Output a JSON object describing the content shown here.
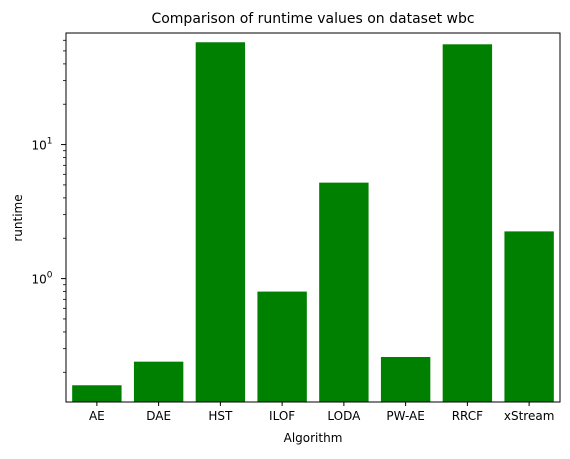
{
  "chart_data": {
    "type": "bar",
    "title": "Comparison of runtime values on dataset wbc",
    "xlabel": "Algorithm",
    "ylabel": "runtime",
    "yscale": "log",
    "ylim": [
      0.12,
      68
    ],
    "grid": false,
    "bar_color": "#008000",
    "categories": [
      "AE",
      "DAE",
      "HST",
      "ILOF",
      "LODA",
      "PW-AE",
      "RRCF",
      "xStream"
    ],
    "values": [
      0.16,
      0.24,
      58,
      0.8,
      5.2,
      0.26,
      56,
      2.25
    ],
    "y_ticks": [
      {
        "value": 1,
        "base": "10",
        "exp": "0"
      },
      {
        "value": 10,
        "base": "10",
        "exp": "1"
      }
    ]
  }
}
